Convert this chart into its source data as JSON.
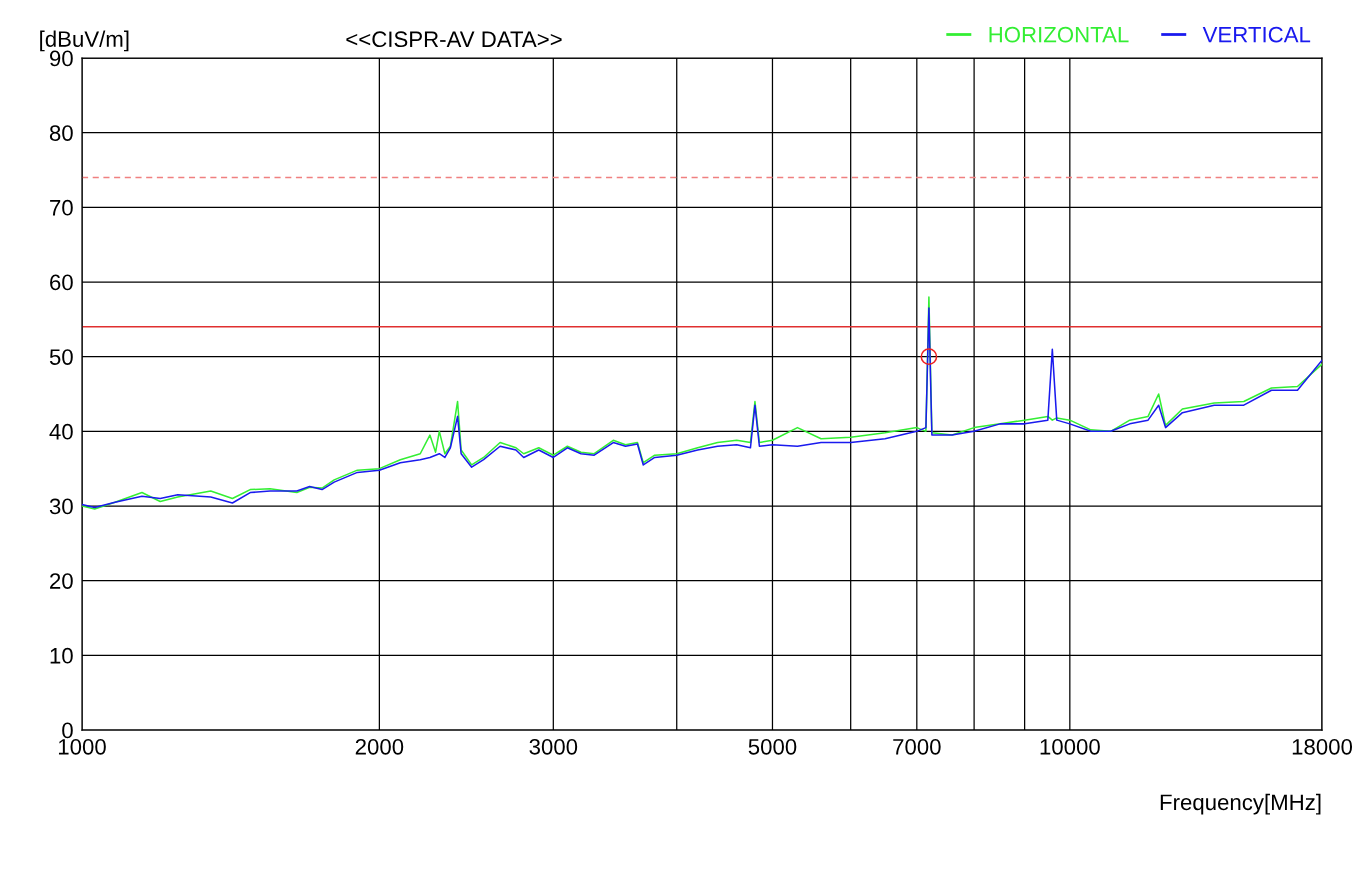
{
  "chart_data": {
    "type": "line",
    "title": "<<CISPR-AV DATA>>",
    "ylabel": "[dBuV/m]",
    "xlabel": "Frequency[MHz]",
    "log": "x",
    "xlim": [
      1000,
      18000
    ],
    "ylim": [
      0,
      90
    ],
    "xticks": [
      1000,
      2000,
      3000,
      {
        "value": 4000,
        "label": null
      },
      5000,
      {
        "value": 6000,
        "label": null
      },
      7000,
      {
        "value": 8000,
        "label": null
      },
      {
        "value": 9000,
        "label": null
      },
      10000,
      18000
    ],
    "yticks": [
      0,
      10,
      20,
      30,
      40,
      50,
      60,
      70,
      80,
      90
    ],
    "grid": true,
    "legend": "top right",
    "ref_lines": [
      {
        "axis": "y",
        "value": 54,
        "color": "#e03030",
        "line_style": "solid"
      },
      {
        "axis": "y",
        "value": 74,
        "color": "#f08080",
        "line_style": "dashed"
      }
    ],
    "series": [
      {
        "name": "HORIZONTAL",
        "color": "#33ee33",
        "x": [
          1000,
          1030,
          1080,
          1150,
          1200,
          1250,
          1350,
          1420,
          1480,
          1550,
          1650,
          1700,
          1750,
          1800,
          1900,
          2000,
          2100,
          2200,
          2250,
          2280,
          2300,
          2330,
          2360,
          2400,
          2420,
          2480,
          2550,
          2650,
          2750,
          2800,
          2900,
          3000,
          3100,
          3200,
          3300,
          3450,
          3550,
          3650,
          3700,
          3800,
          4000,
          4200,
          4400,
          4600,
          4750,
          4800,
          4850,
          5000,
          5300,
          5600,
          6000,
          6500,
          7000,
          7150,
          7200,
          7250,
          7600,
          8000,
          8500,
          9000,
          9500,
          9600,
          9700,
          10000,
          10500,
          11000,
          11500,
          12000,
          12300,
          12500,
          13000,
          14000,
          15000,
          16000,
          17000,
          18000
        ],
        "values": [
          30.0,
          29.6,
          30.5,
          31.8,
          30.6,
          31.2,
          32.0,
          31.0,
          32.2,
          32.3,
          31.8,
          32.5,
          32.4,
          33.5,
          34.8,
          35.0,
          36.2,
          37.0,
          39.5,
          37.2,
          40.0,
          37.0,
          38.0,
          44.0,
          37.5,
          35.5,
          36.5,
          38.5,
          37.8,
          37.0,
          37.8,
          36.8,
          38.0,
          37.2,
          37.0,
          38.8,
          38.2,
          38.5,
          35.8,
          36.8,
          37.0,
          37.8,
          38.5,
          38.8,
          38.5,
          44.0,
          38.5,
          38.8,
          40.5,
          39.0,
          39.2,
          39.8,
          40.5,
          40.0,
          58.0,
          39.8,
          39.5,
          40.5,
          41.0,
          41.5,
          42.0,
          41.5,
          41.8,
          41.5,
          40.2,
          40.0,
          41.5,
          42.0,
          45.0,
          40.8,
          43.0,
          43.8,
          44.0,
          45.8,
          46.0,
          49.0
        ]
      },
      {
        "name": "VERTICAL",
        "color": "#1a1aee",
        "x": [
          1000,
          1030,
          1080,
          1150,
          1200,
          1250,
          1350,
          1420,
          1480,
          1550,
          1650,
          1700,
          1750,
          1800,
          1900,
          2000,
          2100,
          2200,
          2250,
          2280,
          2300,
          2330,
          2360,
          2400,
          2420,
          2480,
          2550,
          2650,
          2750,
          2800,
          2900,
          3000,
          3100,
          3200,
          3300,
          3450,
          3550,
          3650,
          3700,
          3800,
          4000,
          4200,
          4400,
          4600,
          4750,
          4800,
          4850,
          5000,
          5300,
          5600,
          6000,
          6500,
          7000,
          7150,
          7200,
          7250,
          7600,
          8000,
          8500,
          9000,
          9500,
          9600,
          9700,
          10000,
          10500,
          11000,
          11500,
          12000,
          12300,
          12500,
          13000,
          14000,
          15000,
          16000,
          17000,
          18000
        ],
        "values": [
          30.2,
          29.8,
          30.5,
          31.3,
          31.0,
          31.5,
          31.2,
          30.4,
          31.8,
          32.0,
          32.0,
          32.6,
          32.2,
          33.2,
          34.5,
          34.8,
          35.8,
          36.2,
          36.5,
          36.8,
          37.0,
          36.5,
          37.8,
          42.0,
          37.0,
          35.2,
          36.2,
          38.0,
          37.5,
          36.5,
          37.5,
          36.5,
          37.8,
          37.0,
          36.8,
          38.5,
          38.0,
          38.3,
          35.5,
          36.5,
          36.8,
          37.5,
          38.0,
          38.2,
          37.8,
          43.5,
          38.0,
          38.2,
          38.0,
          38.5,
          38.5,
          39.0,
          40.0,
          40.5,
          56.5,
          39.5,
          39.5,
          40.0,
          41.0,
          41.0,
          41.5,
          51.0,
          41.5,
          41.0,
          40.0,
          40.0,
          41.0,
          41.5,
          43.5,
          40.5,
          42.5,
          43.5,
          43.5,
          45.5,
          45.5,
          49.5
        ]
      },
      {
        "type": "scatter",
        "color": "#ee2222",
        "marker": "circle",
        "x": [
          7200
        ],
        "values": [
          50
        ]
      }
    ]
  }
}
